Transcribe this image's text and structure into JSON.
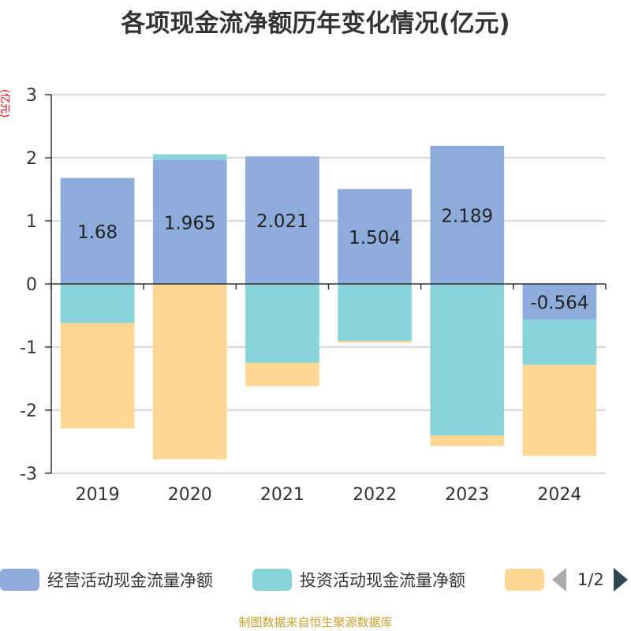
{
  "chart_data": {
    "type": "bar",
    "stacked": true,
    "title": "各项现金流净额历年变化情况(亿元)",
    "ylabel": "(亿元)",
    "categories": [
      "2019",
      "2020",
      "2021",
      "2022",
      "2023",
      "2024"
    ],
    "ylim": [
      -3,
      3
    ],
    "yticks": [
      3,
      2,
      1,
      0,
      -1,
      -2,
      -3
    ],
    "grid": true,
    "legend_position": "bottom",
    "series": [
      {
        "name": "经营活动现金流量净额",
        "color": "#8eacdb",
        "values": [
          1.68,
          1.965,
          2.021,
          1.504,
          2.189,
          -0.564
        ],
        "labels": [
          "1.68",
          "1.965",
          "2.021",
          "1.504",
          "2.189",
          "-0.564"
        ]
      },
      {
        "name": "投资活动现金流量净额",
        "color": "#88d4d8",
        "values": [
          -0.62,
          0.09,
          -1.25,
          -0.9,
          -2.4,
          -0.72
        ]
      },
      {
        "name": "",
        "color": "#fed794",
        "values": [
          -1.67,
          -2.78,
          -0.37,
          -0.03,
          -0.17,
          -1.44
        ]
      }
    ]
  },
  "legend": {
    "page": "1/2"
  },
  "source": "制图数据来自恒生聚源数据库"
}
